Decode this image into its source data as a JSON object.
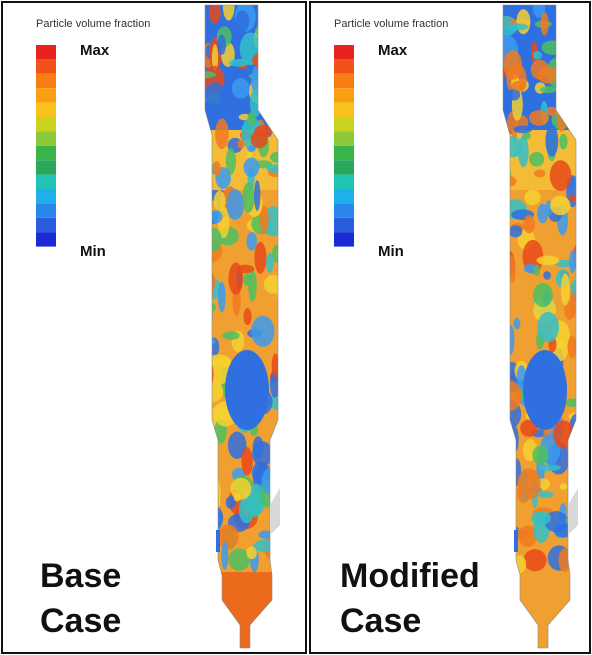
{
  "panels": [
    {
      "legend_title": "Particle volume fraction",
      "max": "Max",
      "min": "Min",
      "label": [
        "Base",
        "Case"
      ]
    },
    {
      "legend_title": "Particle volume fraction",
      "max": "Max",
      "min": "Min",
      "label": [
        "Modified",
        "Case"
      ]
    }
  ]
}
